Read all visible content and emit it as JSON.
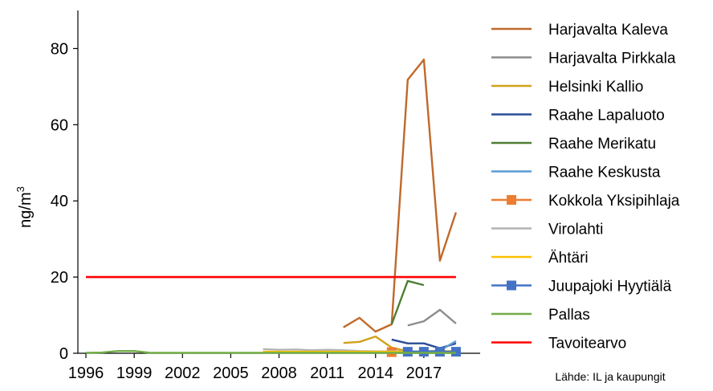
{
  "chart_data": {
    "type": "line",
    "ylabel_base": "ng/m",
    "ylabel_sup": "3",
    "ylim": [
      0,
      90
    ],
    "yticks": [
      "0",
      "20",
      "40",
      "60",
      "80"
    ],
    "yticks_values": [
      0,
      20,
      40,
      60,
      80
    ],
    "xlim": [
      1995.5,
      2020.5
    ],
    "xticks": [
      "1996",
      "1999",
      "2002",
      "2005",
      "2008",
      "2011",
      "2014",
      "2017"
    ],
    "xticks_values": [
      1996,
      1999,
      2002,
      2005,
      2008,
      2011,
      2014,
      2017
    ],
    "grid": false,
    "legend_position": "right",
    "source": "Lähde: IL ja kaupungit",
    "series": [
      {
        "name": "Harjavalta Kaleva",
        "color": "#c0692b",
        "marker": "none",
        "x": [
          2012,
          2013,
          2014,
          2015,
          2016,
          2017,
          2018,
          2019
        ],
        "y": [
          6.8,
          9.3,
          5.7,
          7.6,
          71.8,
          77.1,
          24.3,
          37.0
        ]
      },
      {
        "name": "Harjavalta Pirkkala",
        "color": "#8c8c8c",
        "marker": "none",
        "x": [
          2016,
          2017,
          2018,
          2019
        ],
        "y": [
          7.3,
          8.4,
          11.4,
          7.8
        ]
      },
      {
        "name": "Helsinki Kallio",
        "color": "#d0a11c",
        "marker": "none",
        "x": [
          2012,
          2013,
          2014,
          2015,
          2016,
          2017,
          2018,
          2019
        ],
        "y": [
          2.7,
          3.0,
          4.4,
          1.5,
          0.5,
          0.4,
          0.6,
          0.5
        ]
      },
      {
        "name": "Raahe Lapaluoto",
        "color": "#2a4d97",
        "marker": "none",
        "x": [
          2015,
          2016,
          2017,
          2018,
          2019
        ],
        "y": [
          3.6,
          2.6,
          2.6,
          1.3,
          2.6
        ]
      },
      {
        "name": "Raahe Merikatu",
        "color": "#4f7f33",
        "marker": "none",
        "x": [
          2015,
          2016,
          2017
        ],
        "y": [
          7.6,
          19.0,
          17.9
        ]
      },
      {
        "name": "Raahe Keskusta",
        "color": "#5b9bd5",
        "marker": "none",
        "x": [
          2015,
          2016,
          2017,
          2018,
          2019
        ],
        "y": [
          0.5,
          0.5,
          0.5,
          0.7,
          3.2
        ]
      },
      {
        "name": "Kokkola Yksipihlaja",
        "color": "#ed7d31",
        "marker": "square",
        "x": [
          2015
        ],
        "y": [
          0.3
        ]
      },
      {
        "name": "Virolahti",
        "color": "#b3b3b3",
        "marker": "none",
        "x": [
          2007,
          2008,
          2009,
          2010,
          2011,
          2012,
          2013,
          2014,
          2015,
          2016,
          2017,
          2018,
          2019
        ],
        "y": [
          1.1,
          0.9,
          1.0,
          0.8,
          0.9,
          0.8,
          0.6,
          0.5,
          0.5,
          0.4,
          0.4,
          0.4,
          0.4
        ]
      },
      {
        "name": "Ähtäri",
        "color": "#ffc000",
        "marker": "none",
        "x": [
          2007,
          2008,
          2009,
          2010,
          2011,
          2012,
          2013,
          2014,
          2015,
          2016,
          2017,
          2018,
          2019
        ],
        "y": [
          0.4,
          0.4,
          0.4,
          0.4,
          0.4,
          0.4,
          0.4,
          0.4,
          0.4,
          0.4,
          0.4,
          0.4,
          0.4
        ]
      },
      {
        "name": "Juupajoki Hyytiälä",
        "color": "#4472c4",
        "marker": "square",
        "x": [
          2016,
          2017,
          2018,
          2019
        ],
        "y": [
          0.4,
          0.4,
          0.4,
          0.4
        ]
      },
      {
        "name": "Pallas",
        "color": "#70ad47",
        "marker": "none",
        "x": [
          1996,
          1997,
          1998,
          1999,
          2000,
          2001,
          2002,
          2003,
          2004,
          2005,
          2006,
          2007,
          2008,
          2009,
          2010,
          2011,
          2012,
          2013,
          2014,
          2015,
          2016,
          2017,
          2018,
          2019
        ],
        "y": [
          0.1,
          0.2,
          0.6,
          0.6,
          0.1,
          0.1,
          0.1,
          0.1,
          0.1,
          0.1,
          0.1,
          0.1,
          0.1,
          0.1,
          0.1,
          0.1,
          0.1,
          0.1,
          0.1,
          0.1,
          0.1,
          0.1,
          0.1,
          0.1
        ]
      },
      {
        "name": "Tavoitearvo",
        "color": "#ff0000",
        "marker": "none",
        "x": [
          1996,
          2019
        ],
        "y": [
          20,
          20
        ]
      }
    ]
  }
}
